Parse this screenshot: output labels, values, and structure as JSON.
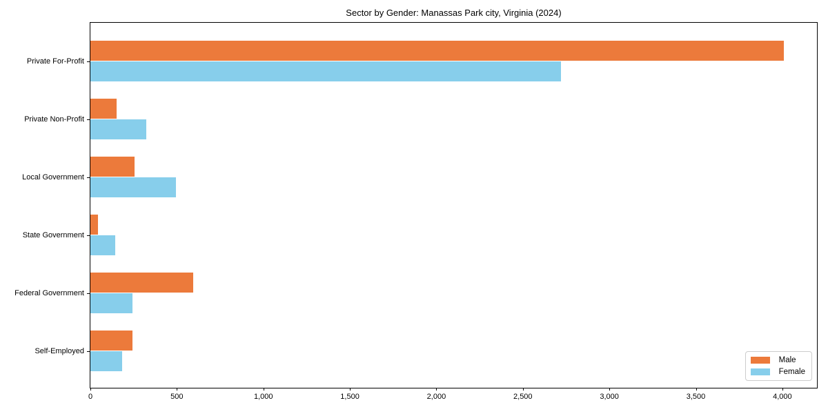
{
  "chart_data": {
    "type": "bar",
    "orientation": "horizontal",
    "title": "Sector by Gender: Manassas Park city, Virginia (2024)",
    "categories": [
      "Private For-Profit",
      "Private Non-Profit",
      "Local Government",
      "State Government",
      "Federal Government",
      "Self-Employed"
    ],
    "series": [
      {
        "name": "Male",
        "color": "#ec7a3b",
        "values": [
          4010,
          150,
          255,
          45,
          595,
          245
        ]
      },
      {
        "name": "Female",
        "color": "#87ceeb",
        "values": [
          2720,
          325,
          495,
          145,
          245,
          185
        ]
      }
    ],
    "xlabel": "",
    "ylabel": "",
    "xlim": [
      0,
      4200
    ],
    "x_ticks": [
      0,
      500,
      1000,
      1500,
      2000,
      2500,
      3000,
      3500,
      4000
    ],
    "x_tick_labels": [
      "0",
      "500",
      "1,000",
      "1,500",
      "2,000",
      "2,500",
      "3,000",
      "3,500",
      "4,000"
    ],
    "legend": {
      "position": "lower right",
      "labels": [
        "Male",
        "Female"
      ]
    },
    "grid": false
  }
}
